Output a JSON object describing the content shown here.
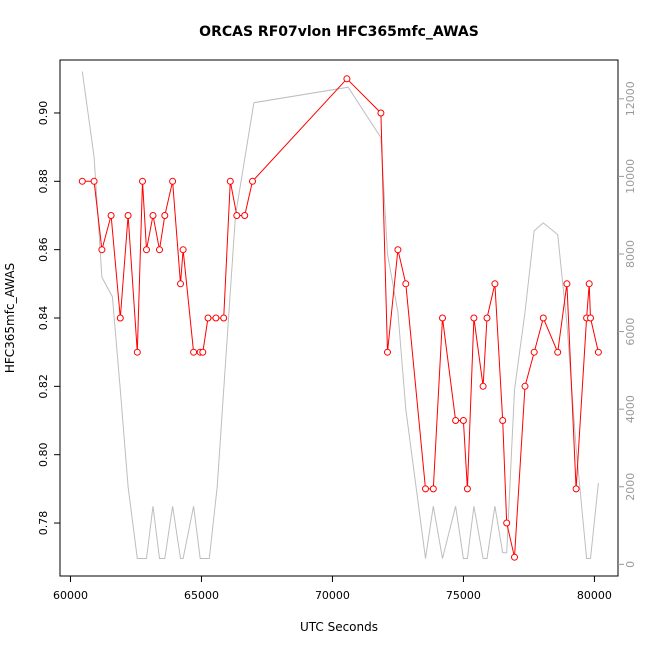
{
  "chart_data": {
    "type": "line",
    "title": "ORCAS RF07vlon HFC365mfc_AWAS",
    "xlabel": "UTC Seconds",
    "ylabel": "HFC365mfc_AWAS",
    "xlim": [
      59600,
      80900
    ],
    "ylim": [
      0.7645,
      0.9155
    ],
    "y2lim": [
      -300,
      13000
    ],
    "x_ticks": [
      {
        "value": 60000,
        "label": "60000"
      },
      {
        "value": 65000,
        "label": "65000"
      },
      {
        "value": 70000,
        "label": "70000"
      },
      {
        "value": 75000,
        "label": "75000"
      },
      {
        "value": 80000,
        "label": "80000"
      }
    ],
    "y_ticks": [
      {
        "value": 0.78,
        "label": "0.78"
      },
      {
        "value": 0.8,
        "label": "0.80"
      },
      {
        "value": 0.82,
        "label": "0.82"
      },
      {
        "value": 0.84,
        "label": "0.84"
      },
      {
        "value": 0.86,
        "label": "0.86"
      },
      {
        "value": 0.88,
        "label": "0.88"
      },
      {
        "value": 0.9,
        "label": "0.90"
      }
    ],
    "y2_ticks": [
      {
        "value": 0,
        "label": "0"
      },
      {
        "value": 2000,
        "label": "2000"
      },
      {
        "value": 4000,
        "label": "4000"
      },
      {
        "value": 6000,
        "label": "6000"
      },
      {
        "value": 8000,
        "label": "8000"
      },
      {
        "value": 10000,
        "label": "10000"
      },
      {
        "value": 12000,
        "label": "12000"
      }
    ],
    "series": [
      {
        "axis": "left",
        "color": "#ff0000",
        "style": "line+points",
        "points": [
          [
            60450,
            0.88
          ],
          [
            60900,
            0.88
          ],
          [
            61200,
            0.86
          ],
          [
            61550,
            0.87
          ],
          [
            61900,
            0.84
          ],
          [
            62200,
            0.87
          ],
          [
            62550,
            0.83
          ],
          [
            62750,
            0.88
          ],
          [
            62900,
            0.86
          ],
          [
            63150,
            0.87
          ],
          [
            63400,
            0.86
          ],
          [
            63600,
            0.87
          ],
          [
            63900,
            0.88
          ],
          [
            64200,
            0.85
          ],
          [
            64300,
            0.86
          ],
          [
            64700,
            0.83
          ],
          [
            64950,
            0.83
          ],
          [
            65050,
            0.83
          ],
          [
            65250,
            0.84
          ],
          [
            65550,
            0.84
          ],
          [
            65850,
            0.84
          ],
          [
            66100,
            0.88
          ],
          [
            66350,
            0.87
          ],
          [
            66650,
            0.87
          ],
          [
            66950,
            0.88
          ],
          [
            70550,
            0.91
          ],
          [
            71850,
            0.9
          ],
          [
            72100,
            0.83
          ],
          [
            72500,
            0.86
          ],
          [
            72800,
            0.85
          ],
          [
            73550,
            0.79
          ],
          [
            73850,
            0.79
          ],
          [
            74200,
            0.84
          ],
          [
            74700,
            0.81
          ],
          [
            75000,
            0.81
          ],
          [
            75150,
            0.79
          ],
          [
            75400,
            0.84
          ],
          [
            75750,
            0.82
          ],
          [
            75900,
            0.84
          ],
          [
            76200,
            0.85
          ],
          [
            76500,
            0.81
          ],
          [
            76650,
            0.78
          ],
          [
            76950,
            0.77
          ],
          [
            77350,
            0.82
          ],
          [
            77700,
            0.83
          ],
          [
            78050,
            0.84
          ],
          [
            78600,
            0.83
          ],
          [
            78950,
            0.85
          ],
          [
            79300,
            0.79
          ],
          [
            79700,
            0.84
          ],
          [
            79800,
            0.85
          ],
          [
            79850,
            0.84
          ],
          [
            80150,
            0.83
          ]
        ]
      },
      {
        "axis": "right",
        "color": "#bebebe",
        "style": "line",
        "points": [
          [
            60450,
            12700
          ],
          [
            60900,
            10500
          ],
          [
            61200,
            7400
          ],
          [
            61600,
            6900
          ],
          [
            61900,
            4500
          ],
          [
            62200,
            2000
          ],
          [
            62550,
            150
          ],
          [
            62900,
            150
          ],
          [
            63150,
            1500
          ],
          [
            63400,
            150
          ],
          [
            63600,
            150
          ],
          [
            63900,
            1500
          ],
          [
            64200,
            150
          ],
          [
            64300,
            150
          ],
          [
            64700,
            1500
          ],
          [
            64950,
            150
          ],
          [
            65300,
            150
          ],
          [
            65600,
            2000
          ],
          [
            65900,
            5000
          ],
          [
            66300,
            9000
          ],
          [
            67000,
            11900
          ],
          [
            70600,
            12300
          ],
          [
            71850,
            11000
          ],
          [
            72100,
            8000
          ],
          [
            72500,
            6500
          ],
          [
            72800,
            4000
          ],
          [
            73550,
            150
          ],
          [
            73850,
            1500
          ],
          [
            74200,
            150
          ],
          [
            74700,
            1500
          ],
          [
            75000,
            150
          ],
          [
            75150,
            150
          ],
          [
            75400,
            1500
          ],
          [
            75750,
            150
          ],
          [
            75900,
            150
          ],
          [
            76200,
            1500
          ],
          [
            76500,
            300
          ],
          [
            76650,
            300
          ],
          [
            76950,
            4500
          ],
          [
            77350,
            6500
          ],
          [
            77700,
            8600
          ],
          [
            78050,
            8800
          ],
          [
            78600,
            8500
          ],
          [
            78950,
            6200
          ],
          [
            79300,
            3000
          ],
          [
            79700,
            150
          ],
          [
            79850,
            150
          ],
          [
            80150,
            2100
          ]
        ]
      }
    ]
  }
}
